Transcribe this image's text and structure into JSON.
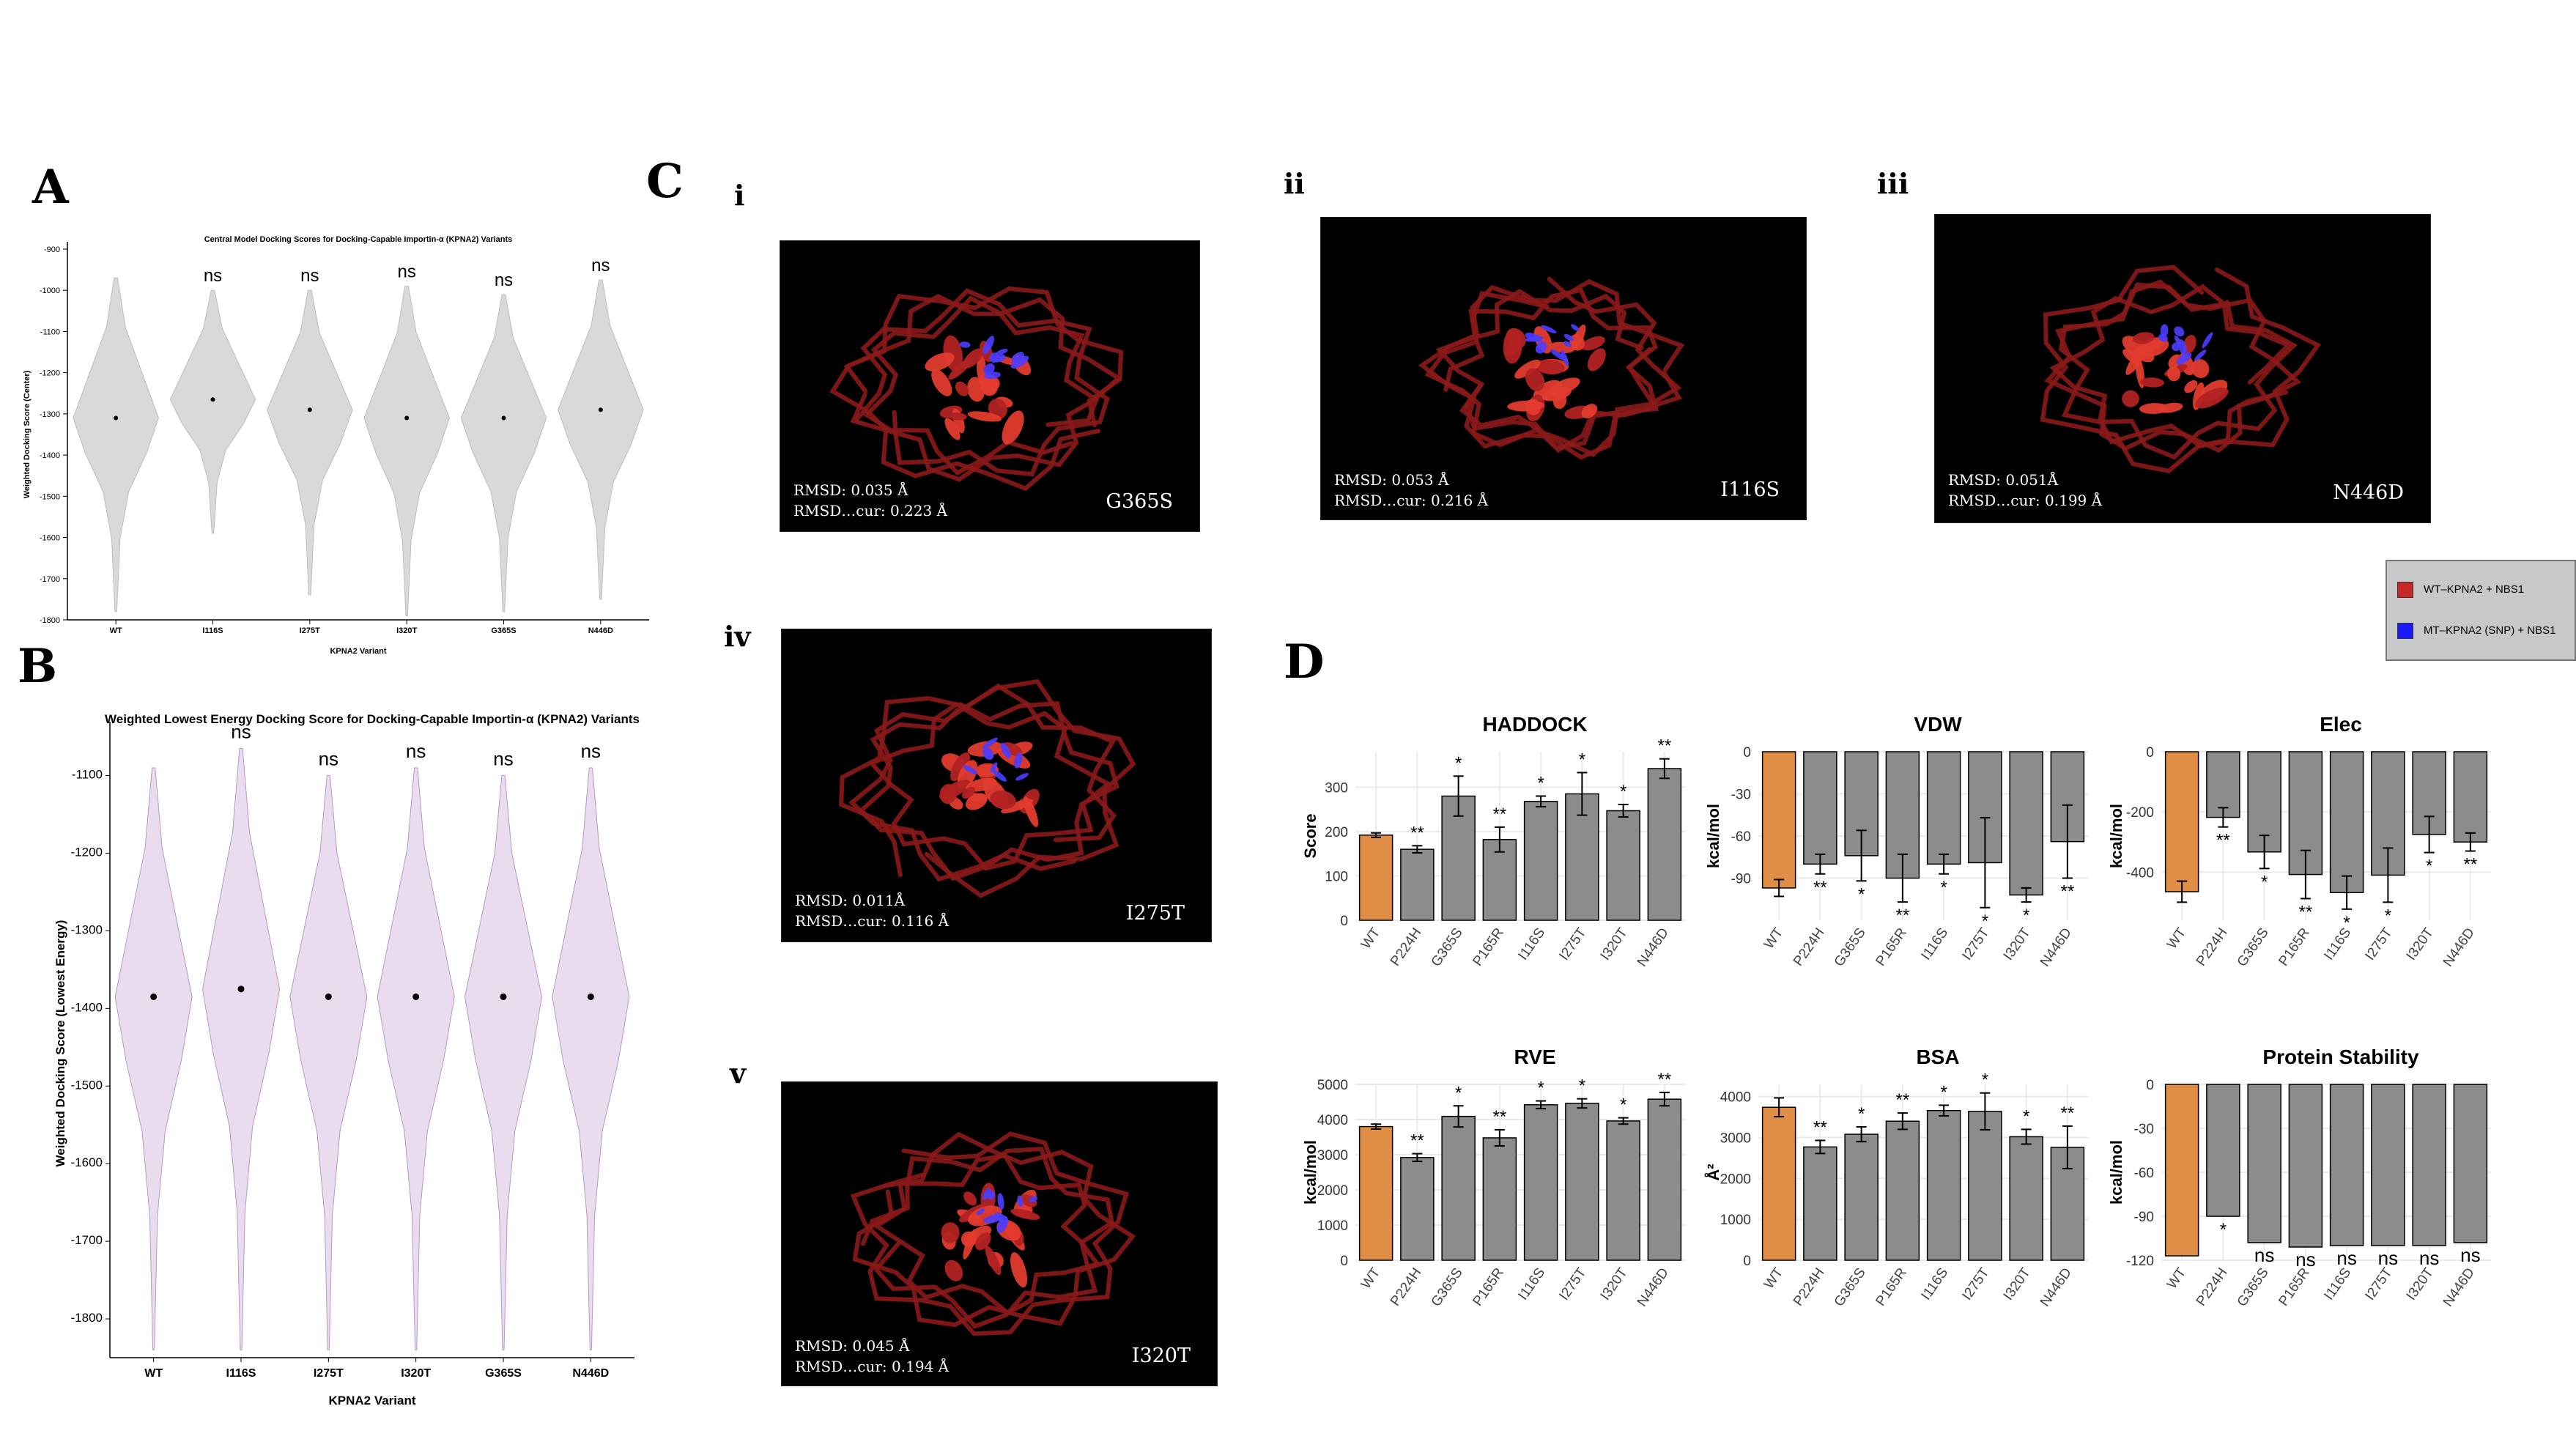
{
  "panels": {
    "A": "A",
    "B": "B",
    "C": "C",
    "D": "D"
  },
  "structures": {
    "roman": [
      "i",
      "ii",
      "iii",
      "iv",
      "v"
    ],
    "items": [
      {
        "roman": "i",
        "variant": "G365S",
        "rmsd": "RMSD: 0.035 Å",
        "rmsd_cur": "RMSD…cur: 0.223 Å"
      },
      {
        "roman": "ii",
        "variant": "I116S",
        "rmsd": "RMSD: 0.053 Å",
        "rmsd_cur": "RMSD…cur: 0.216 Å"
      },
      {
        "roman": "iii",
        "variant": "N446D",
        "rmsd": "RMSD: 0.051Å",
        "rmsd_cur": "RMSD…cur: 0.199 Å"
      },
      {
        "roman": "iv",
        "variant": "I275T",
        "rmsd": "RMSD: 0.011Å",
        "rmsd_cur": "RMSD…cur: 0.116 Å"
      },
      {
        "roman": "v",
        "variant": "I320T",
        "rmsd": "RMSD: 0.045 Å",
        "rmsd_cur": "RMSD…cur: 0.194 Å"
      }
    ]
  },
  "legend": {
    "items": [
      {
        "label": "WT–KPNA2 + NBS1",
        "color": "#c62828"
      },
      {
        "label": "MT–KPNA2 (SNP) + NBS1",
        "color": "#1a1aff"
      }
    ]
  },
  "colors": {
    "violinA": "#d9d9d9",
    "violinB": "#e8dcee",
    "violinBStroke": "#b79ac7",
    "wt": "#e08e45",
    "mt": "#8c8c8c",
    "grid": "#ebebeb"
  },
  "chart_data": [
    {
      "id": "A",
      "type": "violin",
      "title": "Central Model Docking Scores for Docking-Capable Importin-α (KPNA2) Variants",
      "xlabel": "KPNA2 Variant",
      "ylabel": "Weighted Docking Score (Center)",
      "ylim": [
        -1800,
        -900
      ],
      "yticks": [
        -900,
        -1000,
        -1100,
        -1200,
        -1300,
        -1400,
        -1500,
        -1600,
        -1700,
        -1800
      ],
      "categories": [
        "WT",
        "I116S",
        "I275T",
        "I320T",
        "G365S",
        "N446D"
      ],
      "medians": [
        -1310,
        -1265,
        -1290,
        -1310,
        -1310,
        -1290
      ],
      "ranges": [
        [
          -1780,
          -970
        ],
        [
          -1590,
          -1000
        ],
        [
          -1740,
          -1000
        ],
        [
          -1790,
          -990
        ],
        [
          -1780,
          -1010
        ],
        [
          -1750,
          -975
        ]
      ],
      "significance": [
        "",
        "ns",
        "ns",
        "ns",
        "ns",
        "ns"
      ]
    },
    {
      "id": "B",
      "type": "violin",
      "title": "Weighted Lowest Energy Docking Score for Docking-Capable Importin-α (KPNA2) Variants",
      "xlabel": "KPNA2 Variant",
      "ylabel": "Weighted Docking Score (Lowest Energy)",
      "ylim": [
        -1850,
        -1040
      ],
      "yticks": [
        -1100,
        -1200,
        -1300,
        -1400,
        -1500,
        -1600,
        -1700,
        -1800
      ],
      "categories": [
        "WT",
        "I116S",
        "I275T",
        "I320T",
        "G365S",
        "N446D"
      ],
      "medians": [
        -1385,
        -1375,
        -1385,
        -1385,
        -1385,
        -1385
      ],
      "ranges": [
        [
          -1840,
          -1090
        ],
        [
          -1840,
          -1065
        ],
        [
          -1840,
          -1100
        ],
        [
          -1840,
          -1090
        ],
        [
          -1840,
          -1100
        ],
        [
          -1840,
          -1090
        ]
      ],
      "significance": [
        "",
        "ns",
        "ns",
        "ns",
        "ns",
        "ns"
      ]
    },
    {
      "id": "HADDOCK",
      "type": "bar",
      "title": "HADDOCK",
      "ylabel": "Score",
      "categories": [
        "WT",
        "P224H",
        "G365S",
        "P165R",
        "I116S",
        "I275T",
        "I320T",
        "N446D"
      ],
      "values": [
        192,
        160,
        280,
        182,
        268,
        285,
        247,
        342
      ],
      "errors": [
        5,
        8,
        45,
        28,
        12,
        48,
        14,
        22
      ],
      "significance": [
        "",
        "**",
        "*",
        "**",
        "*",
        "*",
        "*",
        "**"
      ],
      "ylim": [
        0,
        380
      ],
      "yticks": [
        0,
        100,
        200,
        300
      ]
    },
    {
      "id": "VDW",
      "type": "bar",
      "title": "VDW",
      "ylabel": "kcal/mol",
      "categories": [
        "WT",
        "P224H",
        "G365S",
        "P165R",
        "I116S",
        "I275T",
        "I320T",
        "N446D"
      ],
      "values": [
        -97,
        -80,
        -74,
        -90,
        -80,
        -79,
        -102,
        -64
      ],
      "errors": [
        6,
        7,
        18,
        17,
        7,
        32,
        5,
        26
      ],
      "significance": [
        "",
        "**",
        "*",
        "**",
        "*",
        "*",
        "*",
        "**"
      ],
      "ylim": [
        -120,
        0
      ],
      "yticks": [
        0,
        -30,
        -60,
        -90
      ]
    },
    {
      "id": "Elec",
      "type": "bar",
      "title": "Elec",
      "ylabel": "kcal/mol",
      "categories": [
        "WT",
        "P224H",
        "G365S",
        "P165R",
        "I116S",
        "I275T",
        "I320T",
        "N446D"
      ],
      "values": [
        -465,
        -218,
        -333,
        -408,
        -468,
        -410,
        -275,
        -300
      ],
      "errors": [
        35,
        32,
        55,
        80,
        55,
        90,
        60,
        30
      ],
      "significance": [
        "",
        "**",
        "*",
        "**",
        "*",
        "*",
        "*",
        "**"
      ],
      "ylim": [
        -560,
        0
      ],
      "yticks": [
        0,
        -200,
        -400
      ]
    },
    {
      "id": "RVE",
      "type": "bar",
      "title": "RVE",
      "ylabel": "kcal/mol",
      "categories": [
        "WT",
        "P224H",
        "G365S",
        "P165R",
        "I116S",
        "I275T",
        "I320T",
        "N446D"
      ],
      "values": [
        3800,
        2920,
        4090,
        3480,
        4420,
        4460,
        3960,
        4580
      ],
      "errors": [
        70,
        110,
        300,
        230,
        110,
        130,
        90,
        190
      ],
      "significance": [
        "",
        "**",
        "*",
        "**",
        "*",
        "*",
        "*",
        "**"
      ],
      "ylim": [
        0,
        5000
      ],
      "yticks": [
        0,
        1000,
        2000,
        3000,
        4000,
        5000
      ]
    },
    {
      "id": "BSA",
      "type": "bar",
      "title": "BSA",
      "ylabel": "Å²",
      "categories": [
        "WT",
        "P224H",
        "G365S",
        "P165R",
        "I116S",
        "I275T",
        "I320T",
        "N446D"
      ],
      "values": [
        3740,
        2770,
        3080,
        3400,
        3660,
        3640,
        3020,
        2760
      ],
      "errors": [
        230,
        160,
        180,
        200,
        130,
        450,
        180,
        520
      ],
      "significance": [
        "",
        "**",
        "*",
        "**",
        "*",
        "*",
        "*",
        "**"
      ],
      "ylim": [
        0,
        4300
      ],
      "yticks": [
        0,
        1000,
        2000,
        3000,
        4000
      ]
    },
    {
      "id": "Protein Stability",
      "type": "bar",
      "title": "Protein Stability",
      "ylabel": "kcal/mol",
      "categories": [
        "WT",
        "P224H",
        "G365S",
        "P165R",
        "I116S",
        "I275T",
        "I320T",
        "N446D"
      ],
      "values": [
        -117,
        -90,
        -108,
        -111,
        -110,
        -110,
        -110,
        -108
      ],
      "errors": [
        0,
        0,
        0,
        0,
        0,
        0,
        0,
        0
      ],
      "significance": [
        "",
        "*",
        "ns",
        "ns",
        "ns",
        "ns",
        "ns",
        "ns"
      ],
      "ylim": [
        -120,
        0
      ],
      "yticks": [
        0,
        -30,
        -60,
        -90,
        -120
      ]
    }
  ]
}
